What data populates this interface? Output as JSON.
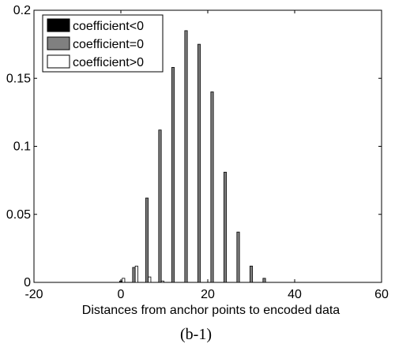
{
  "chart_data": {
    "type": "bar",
    "xlabel": "Distances from anchor points to encoded data",
    "ylabel": "",
    "caption": "(b-1)",
    "xlim": [
      -20,
      60
    ],
    "ylim": [
      0,
      0.2
    ],
    "xticks": [
      "-20",
      "0",
      "20",
      "40",
      "60"
    ],
    "xtick_values": [
      -20,
      0,
      20,
      40,
      60
    ],
    "yticks": [
      "0",
      "0.05",
      "0.1",
      "0.15",
      "0.2"
    ],
    "ytick_values": [
      0,
      0.05,
      0.1,
      0.15,
      0.2
    ],
    "grid": false,
    "legend_position": "top-left",
    "x": [
      0,
      3,
      6,
      9,
      12,
      15,
      18,
      21,
      24,
      27,
      30,
      33,
      36
    ],
    "series": [
      {
        "name": "coefficient<0",
        "color": "#000000",
        "values": [
          0.0,
          0.0,
          0.0,
          0.0,
          0.0,
          0.0,
          0.0,
          0.0,
          0.0,
          0.0,
          0.0,
          0.0,
          0.0
        ]
      },
      {
        "name": "coefficient=0",
        "color": "#808080",
        "values": [
          0.001,
          0.011,
          0.062,
          0.112,
          0.158,
          0.185,
          0.175,
          0.14,
          0.081,
          0.037,
          0.012,
          0.003,
          0.0
        ]
      },
      {
        "name": "coefficient>0",
        "color": "#ffffff",
        "values": [
          0.003,
          0.012,
          0.004,
          0.001,
          0.0,
          0.0,
          0.0,
          0.0,
          0.0,
          0.0,
          0.0,
          0.0,
          0.0
        ]
      }
    ]
  }
}
